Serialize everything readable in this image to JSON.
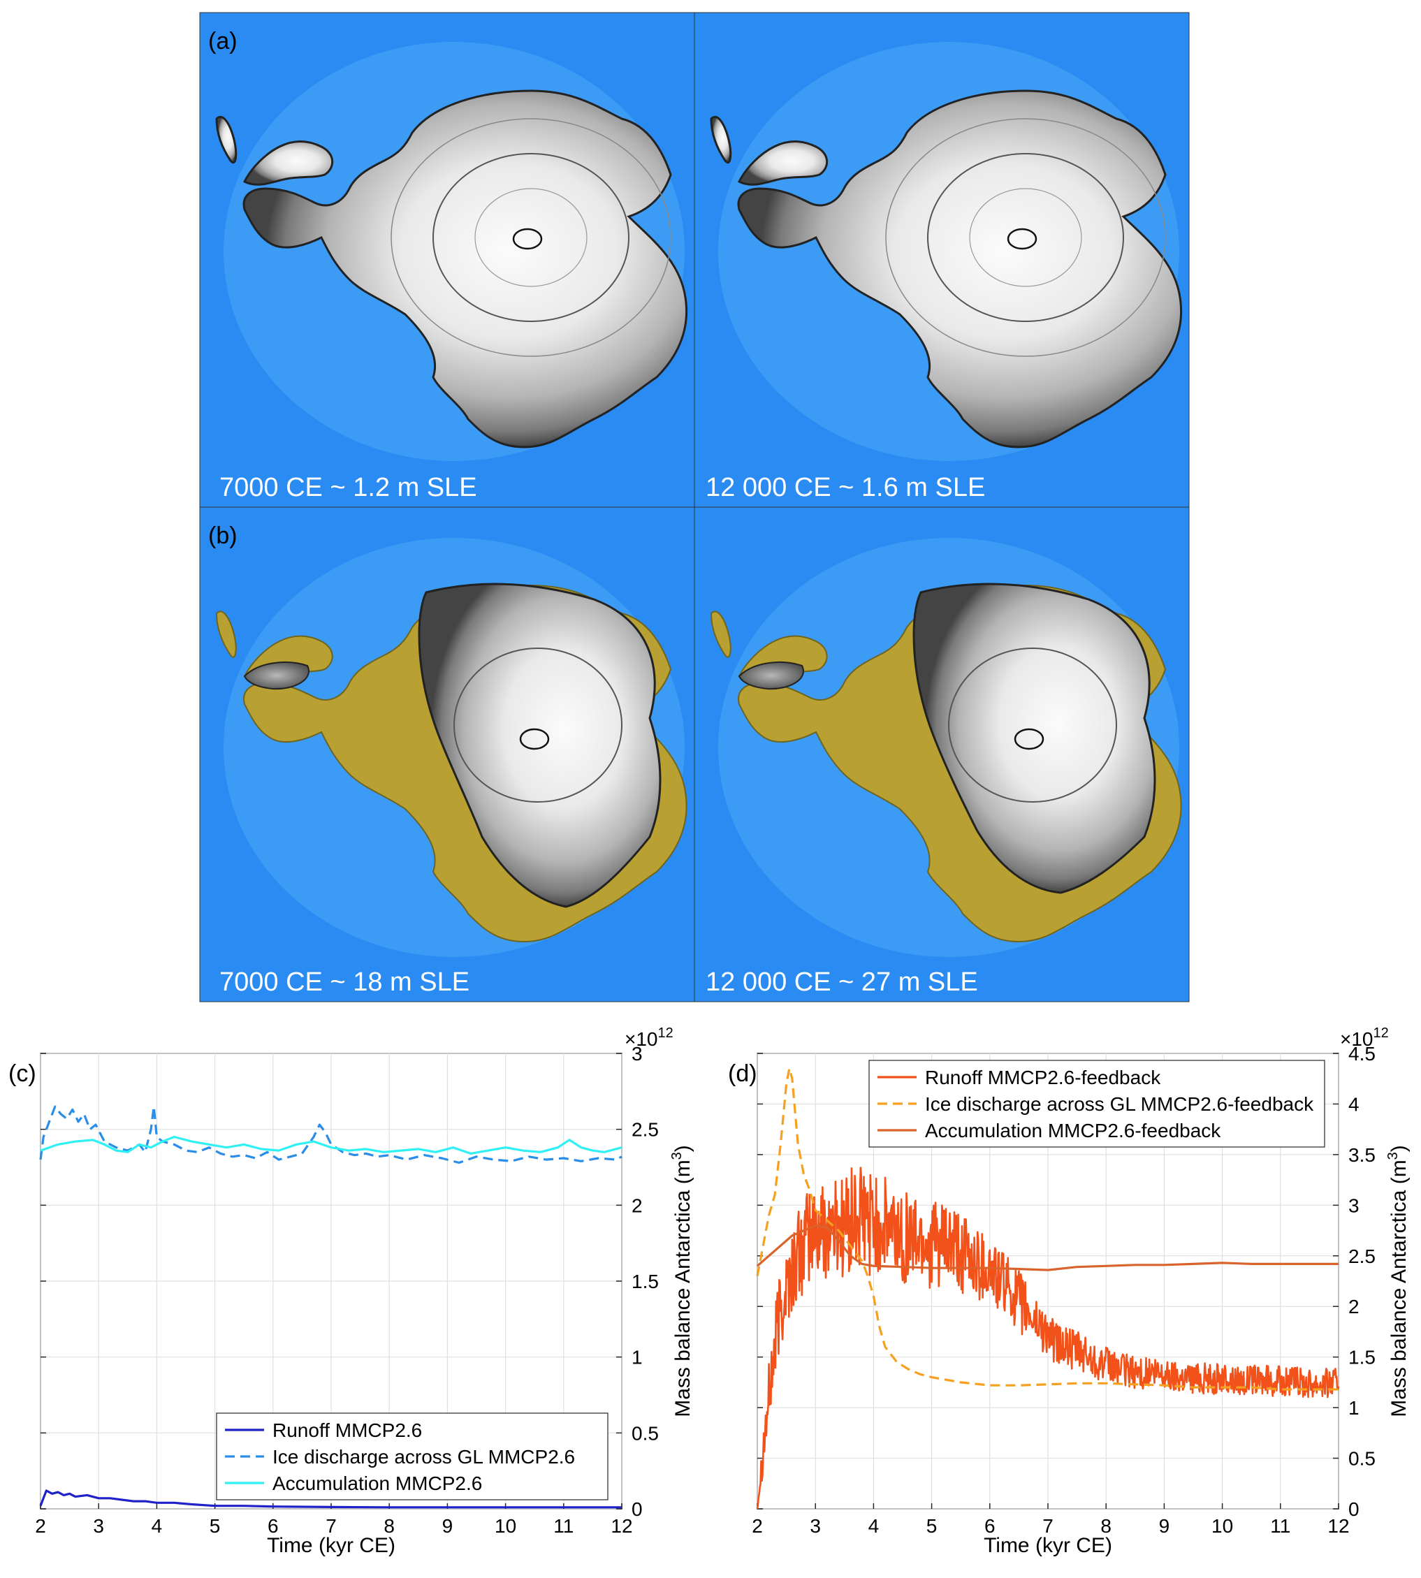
{
  "maps": {
    "panel_a_label": "(a)",
    "panel_b_label": "(b)",
    "a_left_caption": "7000 CE ~ 1.2 m SLE",
    "a_right_caption": "12 000 CE ~ 1.6 m SLE",
    "b_left_caption": "7000 CE ~ 18 m SLE",
    "b_right_caption": "12 000 CE ~ 27 m SLE",
    "colors": {
      "ocean": "#2a8cf2",
      "shelf": "#4aa6f6",
      "ice_light": "#f4f4f4",
      "ice_dark": "#555555",
      "land": "#b8a032"
    }
  },
  "chart_data": [
    {
      "panel": "(c)",
      "type": "line",
      "xlabel": "Time (kyr CE)",
      "ylabel": "Mass balance Antarctica (m",
      "ylabel_sup": "3",
      "ylabel_close": ")",
      "exponent_base": "×10",
      "exponent_power": "12",
      "xlim": [
        2,
        12
      ],
      "ylim": [
        0,
        3
      ],
      "xticks": [
        2,
        3,
        4,
        5,
        6,
        7,
        8,
        9,
        10,
        11,
        12
      ],
      "yticks": [
        0,
        0.5,
        1,
        1.5,
        2,
        2.5,
        3
      ],
      "ytick_labels": [
        "0",
        "0.5",
        "1",
        "1.5",
        "2",
        "2.5",
        "3"
      ],
      "grid": true,
      "legend_position": "bottom-right",
      "series": [
        {
          "name": "Runoff MMCP2.6",
          "color": "#1f22c8",
          "style": "solid",
          "x": [
            2,
            2.1,
            2.2,
            2.3,
            2.4,
            2.5,
            2.6,
            2.8,
            3.0,
            3.2,
            3.4,
            3.6,
            3.8,
            4.0,
            4.3,
            4.6,
            5.0,
            5.5,
            6.0,
            7.0,
            8.0,
            9.0,
            10.0,
            11.0,
            12.0
          ],
          "values": [
            0.02,
            0.12,
            0.1,
            0.11,
            0.09,
            0.1,
            0.08,
            0.09,
            0.07,
            0.07,
            0.06,
            0.05,
            0.05,
            0.04,
            0.04,
            0.03,
            0.02,
            0.02,
            0.015,
            0.012,
            0.01,
            0.01,
            0.01,
            0.01,
            0.01
          ]
        },
        {
          "name": "Ice discharge across GL MMCP2.6",
          "color": "#2a8de8",
          "style": "dashed",
          "x": [
            2,
            2.05,
            2.15,
            2.25,
            2.35,
            2.45,
            2.55,
            2.65,
            2.75,
            2.85,
            2.95,
            3.1,
            3.3,
            3.5,
            3.7,
            3.8,
            3.9,
            3.95,
            4.0,
            4.1,
            4.3,
            4.5,
            4.7,
            4.9,
            5.1,
            5.3,
            5.5,
            5.7,
            5.9,
            6.1,
            6.3,
            6.5,
            6.7,
            6.8,
            6.9,
            7.0,
            7.2,
            7.4,
            7.6,
            7.8,
            8.0,
            8.3,
            8.6,
            8.9,
            9.2,
            9.5,
            9.8,
            10.1,
            10.4,
            10.7,
            11.0,
            11.3,
            11.6,
            11.9,
            12.0
          ],
          "values": [
            2.3,
            2.45,
            2.55,
            2.65,
            2.6,
            2.57,
            2.63,
            2.55,
            2.6,
            2.5,
            2.53,
            2.42,
            2.38,
            2.36,
            2.4,
            2.35,
            2.5,
            2.65,
            2.45,
            2.42,
            2.4,
            2.36,
            2.35,
            2.38,
            2.34,
            2.32,
            2.33,
            2.31,
            2.35,
            2.3,
            2.32,
            2.34,
            2.45,
            2.53,
            2.48,
            2.4,
            2.35,
            2.33,
            2.34,
            2.32,
            2.33,
            2.3,
            2.33,
            2.31,
            2.28,
            2.32,
            2.3,
            2.29,
            2.32,
            2.3,
            2.31,
            2.29,
            2.31,
            2.3,
            2.32
          ]
        },
        {
          "name": "Accumulation MMCP2.6",
          "color": "#2ff0f2",
          "style": "solid",
          "x": [
            2,
            2.3,
            2.6,
            2.9,
            3.1,
            3.3,
            3.5,
            3.7,
            3.9,
            4.1,
            4.3,
            4.6,
            4.9,
            5.2,
            5.5,
            5.8,
            6.1,
            6.4,
            6.7,
            7.0,
            7.3,
            7.6,
            7.9,
            8.2,
            8.5,
            8.8,
            9.1,
            9.4,
            9.7,
            10.0,
            10.3,
            10.6,
            10.9,
            11.1,
            11.3,
            11.5,
            11.7,
            12.0
          ],
          "values": [
            2.36,
            2.4,
            2.42,
            2.43,
            2.4,
            2.36,
            2.35,
            2.4,
            2.38,
            2.42,
            2.45,
            2.42,
            2.4,
            2.38,
            2.4,
            2.37,
            2.36,
            2.4,
            2.42,
            2.38,
            2.36,
            2.37,
            2.35,
            2.36,
            2.37,
            2.35,
            2.38,
            2.34,
            2.36,
            2.38,
            2.36,
            2.35,
            2.38,
            2.43,
            2.38,
            2.36,
            2.35,
            2.38
          ]
        }
      ]
    },
    {
      "panel": "(d)",
      "type": "line",
      "xlabel": "Time (kyr CE)",
      "ylabel": "Mass balance Antarctica (m",
      "ylabel_sup": "3",
      "ylabel_close": ")",
      "exponent_base": "×10",
      "exponent_power": "12",
      "xlim": [
        2,
        12
      ],
      "ylim": [
        0,
        4.5
      ],
      "xticks": [
        2,
        3,
        4,
        5,
        6,
        7,
        8,
        9,
        10,
        11,
        12
      ],
      "yticks": [
        0,
        0.5,
        1,
        1.5,
        2,
        2.5,
        3,
        3.5,
        4,
        4.5
      ],
      "ytick_labels": [
        "0",
        "0.5",
        "1",
        "1.5",
        "2",
        "2.5",
        "3",
        "3.5",
        "4",
        "4.5"
      ],
      "grid": true,
      "legend_position": "top-right",
      "series": [
        {
          "name": "Runoff MMCP2.6-feedback",
          "color": "#f2521a",
          "style": "solid",
          "noisy": true,
          "x": [
            2,
            2.1,
            2.2,
            2.3,
            2.4,
            2.5,
            2.7,
            2.9,
            3.1,
            3.3,
            3.5,
            3.7,
            3.9,
            4.1,
            4.3,
            4.5,
            4.7,
            4.9,
            5.1,
            5.3,
            5.5,
            5.7,
            5.9,
            6.1,
            6.3,
            6.5,
            6.7,
            6.9,
            7.1,
            7.3,
            7.5,
            7.7,
            7.9,
            8.1,
            8.5,
            9.0,
            9.5,
            10.0,
            10.5,
            11.0,
            11.5,
            12.0
          ],
          "values": [
            0.0,
            0.6,
            1.1,
            1.6,
            2.0,
            2.2,
            2.5,
            2.7,
            2.75,
            2.8,
            2.8,
            2.85,
            2.85,
            2.8,
            2.75,
            2.7,
            2.7,
            2.65,
            2.6,
            2.6,
            2.5,
            2.45,
            2.4,
            2.3,
            2.2,
            2.05,
            1.9,
            1.8,
            1.65,
            1.6,
            1.55,
            1.5,
            1.45,
            1.4,
            1.35,
            1.32,
            1.3,
            1.28,
            1.27,
            1.26,
            1.25,
            1.25
          ],
          "noise_amp": [
            0.0,
            0.25,
            0.35,
            0.4,
            0.45,
            0.45,
            0.45,
            0.5,
            0.5,
            0.5,
            0.55,
            0.55,
            0.55,
            0.5,
            0.5,
            0.5,
            0.45,
            0.45,
            0.45,
            0.4,
            0.4,
            0.4,
            0.35,
            0.35,
            0.3,
            0.3,
            0.28,
            0.25,
            0.22,
            0.2,
            0.2,
            0.2,
            0.18,
            0.17,
            0.16,
            0.16,
            0.16,
            0.15,
            0.15,
            0.15,
            0.15,
            0.15
          ]
        },
        {
          "name": "Ice discharge across GL MMCP2.6-feedback",
          "color": "#f5a01e",
          "style": "dashed",
          "x": [
            2,
            2.1,
            2.2,
            2.3,
            2.4,
            2.5,
            2.55,
            2.6,
            2.7,
            2.8,
            2.9,
            3.0,
            3.2,
            3.4,
            3.6,
            3.8,
            3.9,
            4.0,
            4.1,
            4.2,
            4.4,
            4.6,
            4.8,
            5.0,
            5.5,
            6.0,
            6.5,
            7.0,
            7.5,
            8.0,
            8.5,
            9.0,
            9.5,
            10.0,
            10.5,
            11.0,
            11.5,
            12.0
          ],
          "values": [
            2.3,
            2.6,
            2.9,
            3.1,
            3.6,
            4.2,
            4.35,
            4.25,
            3.6,
            3.3,
            3.15,
            2.95,
            2.85,
            2.75,
            2.6,
            2.45,
            2.3,
            2.1,
            1.8,
            1.6,
            1.45,
            1.38,
            1.33,
            1.3,
            1.25,
            1.22,
            1.22,
            1.23,
            1.24,
            1.24,
            1.23,
            1.22,
            1.2,
            1.2,
            1.2,
            1.18,
            1.18,
            1.18
          ]
        },
        {
          "name": "Accumulation MMCP2.6-feedback",
          "color": "#d9632a",
          "style": "solid",
          "x": [
            2,
            2.2,
            2.4,
            2.6,
            2.8,
            3.0,
            3.2,
            3.4,
            3.6,
            3.8,
            4.0,
            4.5,
            5.0,
            5.5,
            6.0,
            6.5,
            7.0,
            7.5,
            8.0,
            8.5,
            9.0,
            9.5,
            10.0,
            10.5,
            11.0,
            11.5,
            12.0
          ],
          "values": [
            2.4,
            2.5,
            2.6,
            2.7,
            2.75,
            2.8,
            2.78,
            2.65,
            2.5,
            2.42,
            2.4,
            2.39,
            2.38,
            2.38,
            2.38,
            2.37,
            2.36,
            2.39,
            2.4,
            2.41,
            2.41,
            2.42,
            2.43,
            2.42,
            2.42,
            2.42,
            2.42
          ]
        }
      ]
    }
  ]
}
